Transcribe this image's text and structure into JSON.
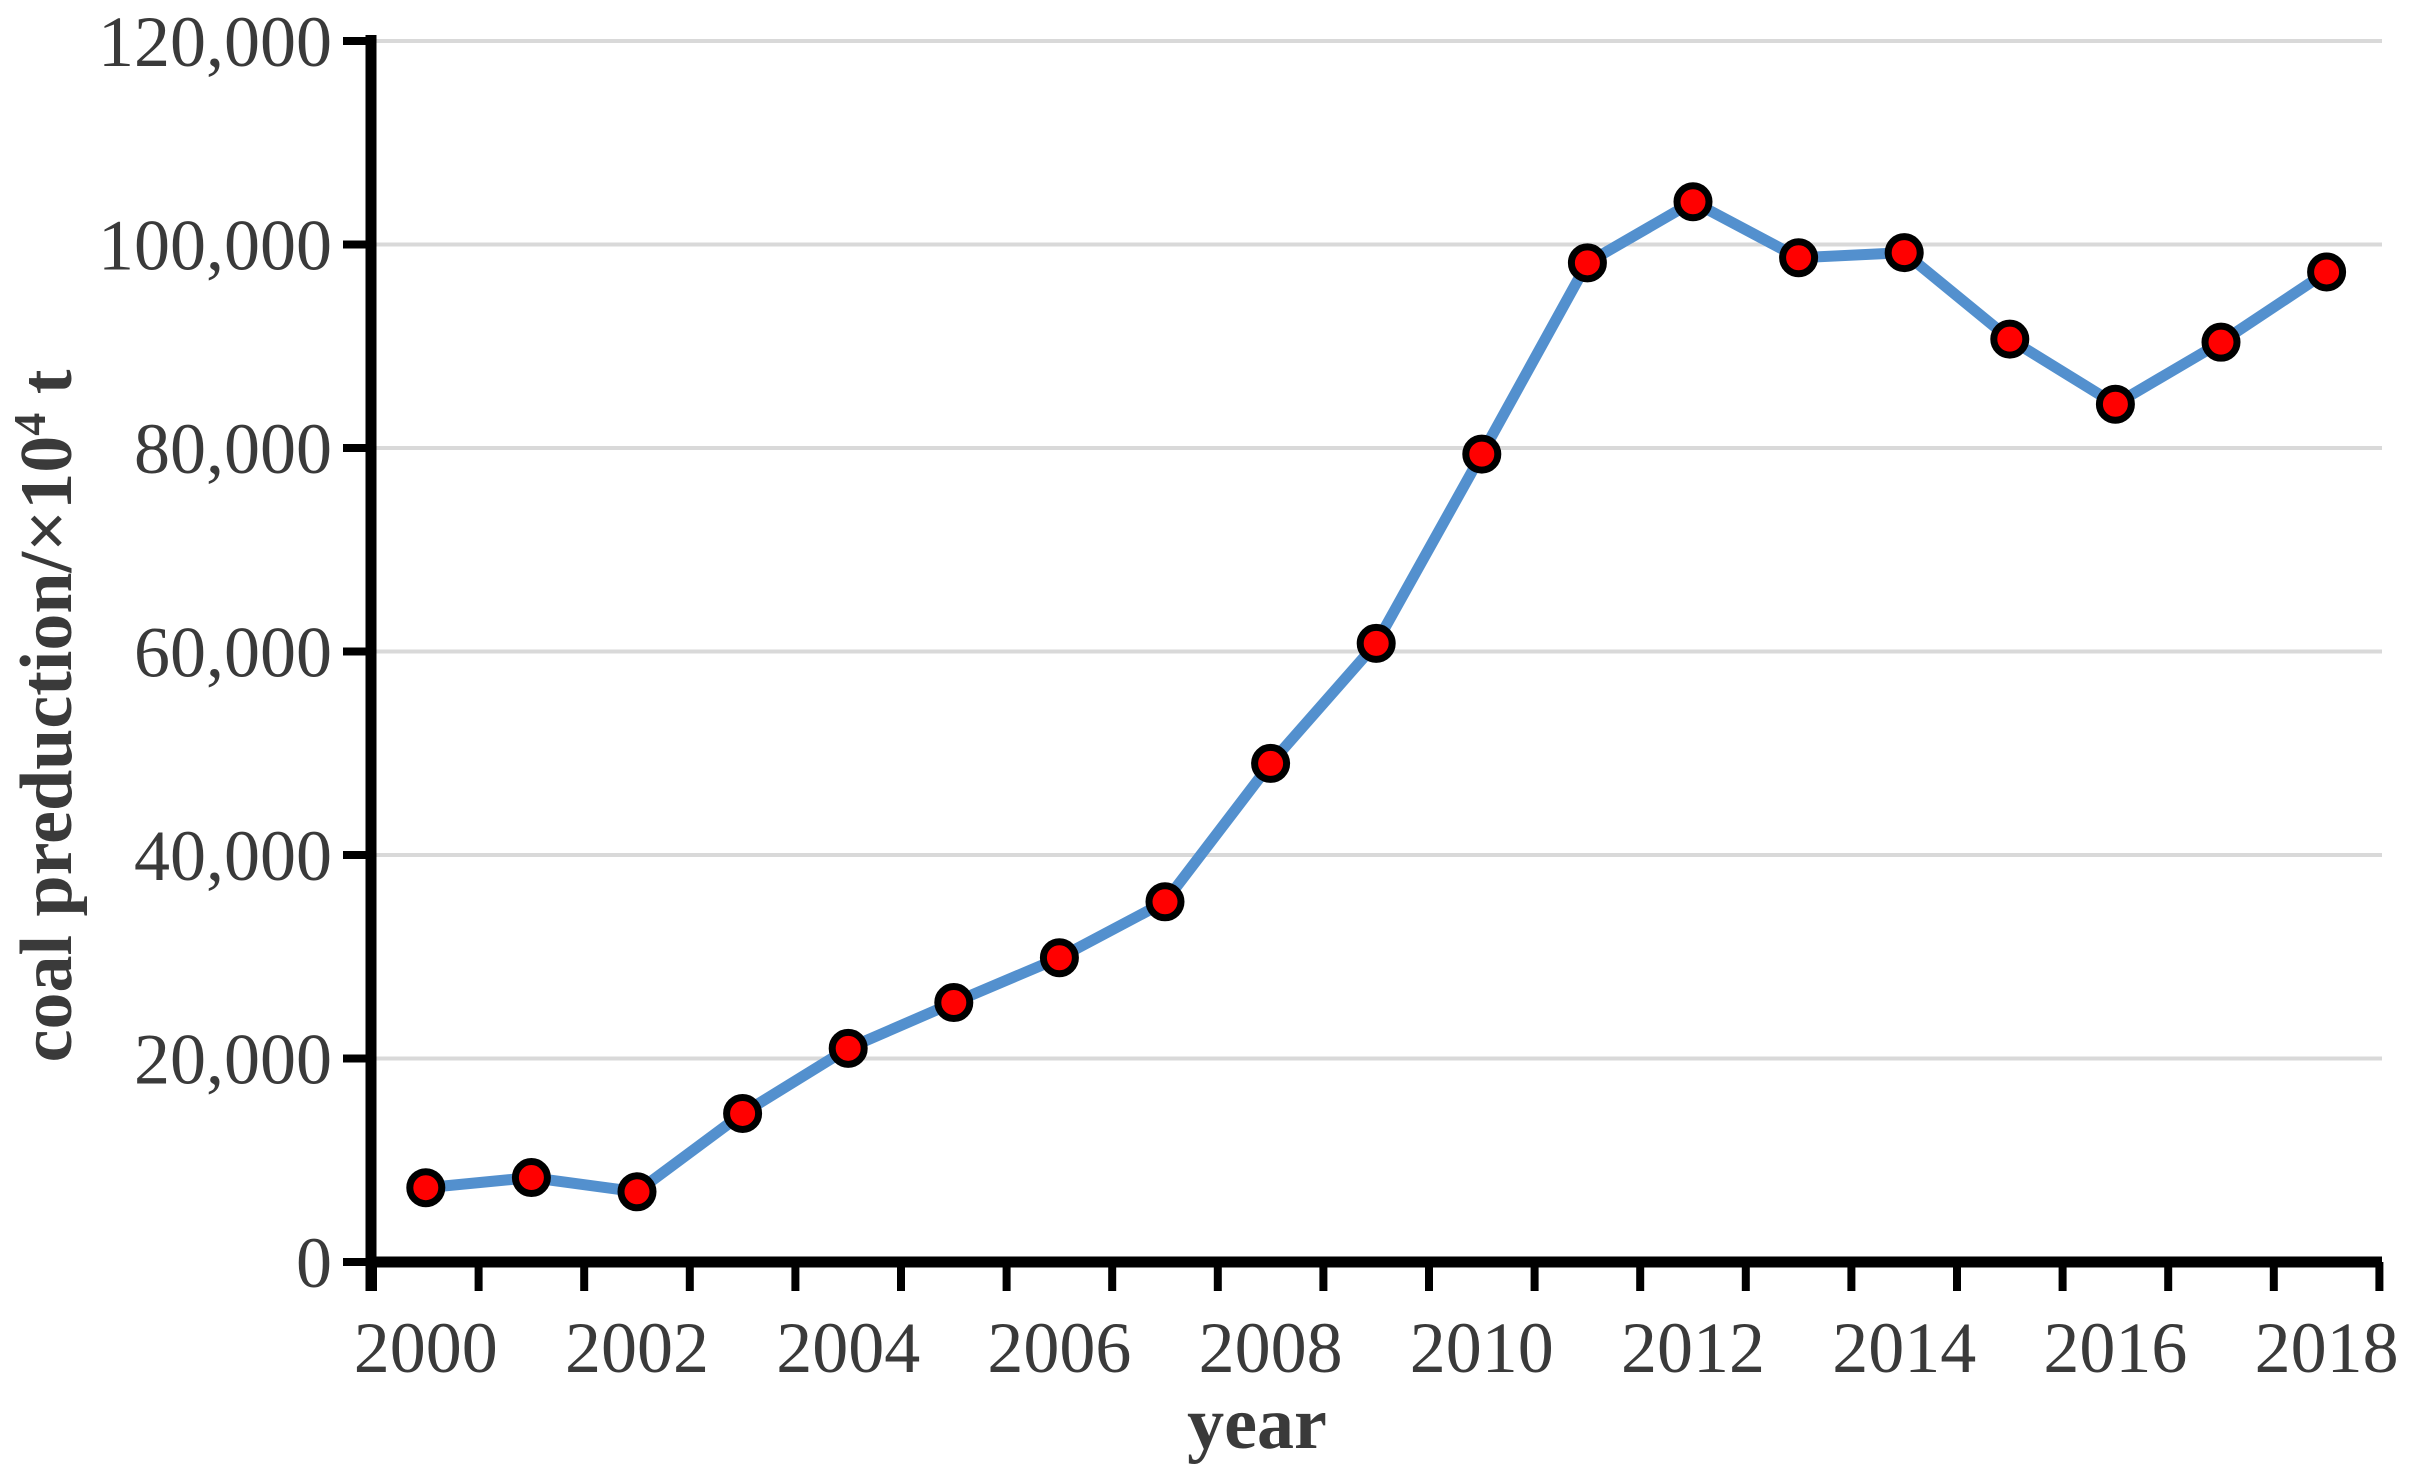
{
  "chart_data": {
    "type": "line",
    "title": "",
    "xlabel": "year",
    "ylabel": "coal preduction/×10⁴ t",
    "ylabel_parts": {
      "main": "coal preduction/×10",
      "superscript": "4",
      "tail": " t"
    },
    "x": [
      2000,
      2001,
      2002,
      2003,
      2004,
      2005,
      2006,
      2007,
      2008,
      2009,
      2010,
      2011,
      2012,
      2013,
      2014,
      2015,
      2016,
      2017,
      2018
    ],
    "series": [
      {
        "name": "coal production",
        "values": [
          7300,
          8300,
          6900,
          14600,
          21000,
          25500,
          29900,
          35400,
          49000,
          60800,
          79400,
          98200,
          104200,
          98700,
          99200,
          90700,
          84300,
          90400,
          97300
        ]
      }
    ],
    "x_tick_labels": [
      "2000",
      "2002",
      "2004",
      "2006",
      "2008",
      "2010",
      "2012",
      "2014",
      "2016",
      "2018"
    ],
    "y_tick_labels": [
      "0",
      "20,000",
      "40,000",
      "60,000",
      "80,000",
      "100,000",
      "120,000"
    ],
    "y_tick_values": [
      0,
      20000,
      40000,
      60000,
      80000,
      100000,
      120000
    ],
    "ylim": [
      0,
      120000
    ],
    "xlim_years": [
      2000,
      2018
    ],
    "grid": "horizontal-only",
    "legend": "none",
    "marker": {
      "shape": "circle",
      "fill": "#FF0000",
      "stroke": "#000000"
    },
    "colors": {
      "line": "#5390CE",
      "grid": "#D9D9D9",
      "axis": "#000000",
      "text": "#3A3A3A"
    }
  }
}
